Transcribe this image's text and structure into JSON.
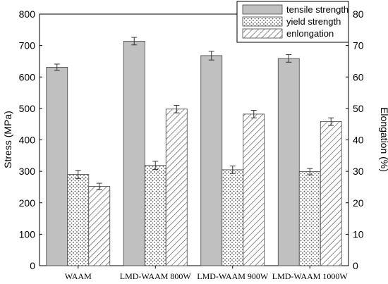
{
  "chart_data": {
    "type": "bar",
    "categories": [
      "WAAM",
      "LMD-WAAM 800W",
      "LMD-WAAM 900W",
      "LMD-WAAM 1000W"
    ],
    "series": [
      {
        "name": "tensile strength",
        "axis": "left",
        "pattern": "solid-gray",
        "values": [
          631,
          714,
          668,
          659
        ],
        "errors": [
          10,
          12,
          14,
          12
        ]
      },
      {
        "name": "yield strength",
        "axis": "left",
        "pattern": "dots",
        "values": [
          290,
          319,
          305,
          299
        ],
        "errors": [
          13,
          13,
          12,
          10
        ]
      },
      {
        "name": "enlongation",
        "axis": "right",
        "pattern": "hatch",
        "values": [
          25.2,
          49.8,
          48.2,
          45.8
        ],
        "errors": [
          1.0,
          1.2,
          1.2,
          1.2
        ]
      }
    ],
    "ylabel_left": "Stress (MPa)",
    "ylabel_right": "Elongation (%)",
    "ylim_left": [
      0,
      800
    ],
    "ylim_right": [
      0,
      80
    ],
    "yticks_left": [
      "0",
      "100",
      "200",
      "300",
      "400",
      "500",
      "600",
      "700",
      "800"
    ],
    "yticks_right": [
      "0",
      "10",
      "20",
      "30",
      "40",
      "50",
      "60",
      "70",
      "80"
    ],
    "grid": false,
    "legend_position": "top-right",
    "colors": {
      "tensile_fill": "#c0c0c0",
      "pattern_ink": "#555555",
      "bar_edge": "#444444"
    }
  }
}
